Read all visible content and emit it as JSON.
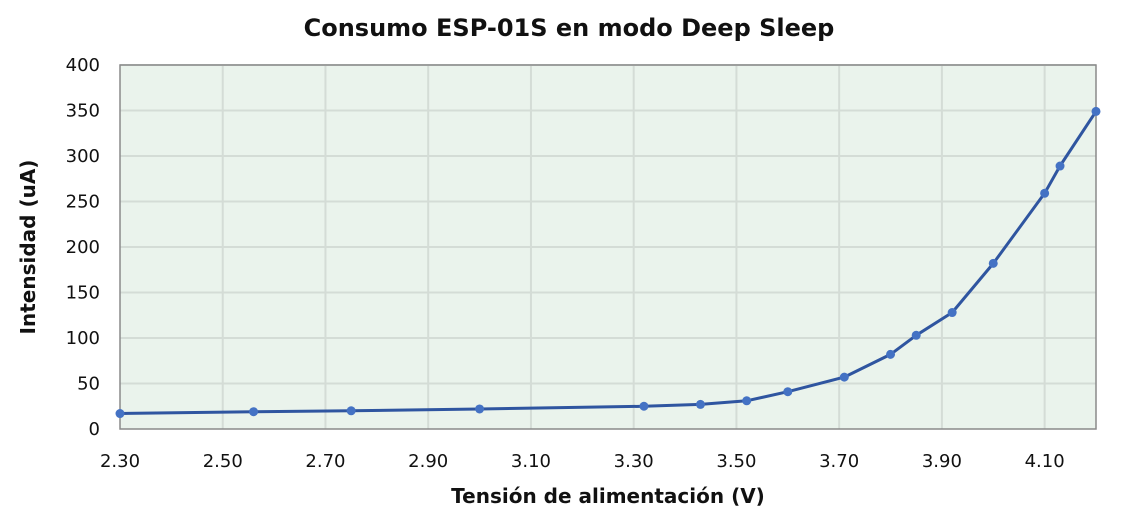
{
  "chart_data": {
    "type": "line",
    "title": "Consumo ESP-01S en modo Deep Sleep",
    "xlabel": "Tensión de alimentación (V)",
    "ylabel": "Intensidad (uA)",
    "xlim": [
      2.3,
      4.2
    ],
    "ylim": [
      0,
      400
    ],
    "xticks": [
      "2.30",
      "2.50",
      "2.70",
      "2.90",
      "3.10",
      "3.30",
      "3.50",
      "3.70",
      "3.90",
      "4.10"
    ],
    "yticks": [
      "0",
      "50",
      "100",
      "150",
      "200",
      "250",
      "300",
      "350",
      "400"
    ],
    "grid": true,
    "colors": {
      "series": "#2f55a0",
      "marker": "#4472c4",
      "plot_bg": "#eaf3ec",
      "grid": "#d4dcd6"
    },
    "series": [
      {
        "x": [
          2.3,
          2.56,
          2.75,
          3.0,
          3.32,
          3.43,
          3.52,
          3.6,
          3.71,
          3.8,
          3.85,
          3.92,
          4.0,
          4.1,
          4.13,
          4.2
        ],
        "y": [
          17,
          19,
          20,
          22,
          25,
          27,
          31,
          41,
          57,
          82,
          103,
          128,
          182,
          259,
          289,
          349
        ]
      }
    ]
  }
}
